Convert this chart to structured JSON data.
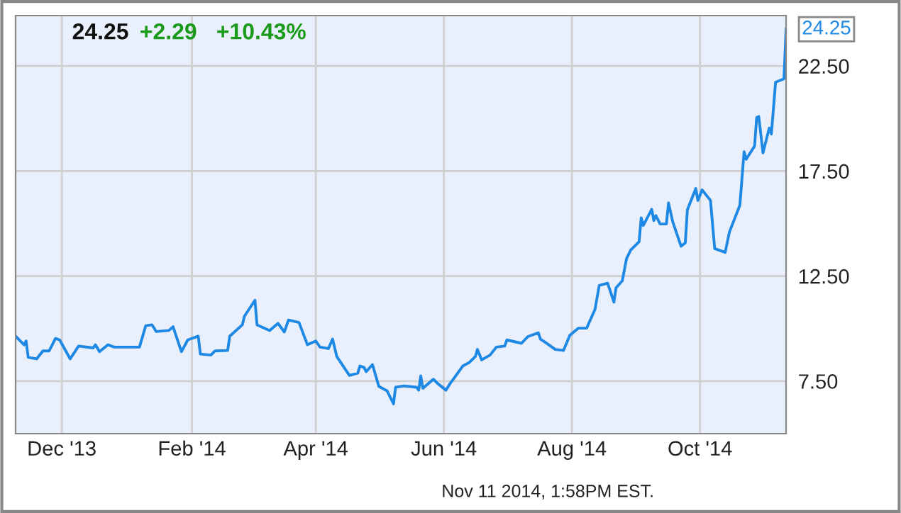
{
  "chart_data": {
    "type": "line",
    "annotations": [
      "24.25",
      "+2.29",
      "+10.43%",
      {
        "text": "24.25",
        "x": "2014-11-11",
        "y": 24.25
      },
      "Nov 11 2014, 1:58PM EST."
    ],
    "series": [
      {
        "color": "#1e88e5",
        "x": [
          "2013-11-09",
          "2013-11-13",
          "2013-11-14",
          "2013-11-15",
          "2013-11-19",
          "2013-11-22",
          "2013-11-25",
          "2013-11-28",
          "2013-11-30",
          "2013-12-05",
          "2013-12-09",
          "2013-12-16",
          "2013-12-17",
          "2013-12-19",
          "2013-12-23",
          "2013-12-26",
          "2014-01-07",
          "2014-01-10",
          "2014-01-13",
          "2014-01-15",
          "2014-01-21",
          "2014-01-23",
          "2014-01-27",
          "2014-01-30",
          "2014-02-04",
          "2014-02-05",
          "2014-02-10",
          "2014-02-12",
          "2014-02-18",
          "2014-02-19",
          "2014-02-25",
          "2014-02-26",
          "2014-03-03",
          "2014-03-04",
          "2014-03-10",
          "2014-03-14",
          "2014-03-17",
          "2014-03-19",
          "2014-03-24",
          "2014-03-28",
          "2014-04-01",
          "2014-04-03",
          "2014-04-07",
          "2014-04-09",
          "2014-04-11",
          "2014-04-17",
          "2014-04-21",
          "2014-04-22",
          "2014-04-24",
          "2014-04-25",
          "2014-04-28",
          "2014-05-01",
          "2014-05-05",
          "2014-05-08",
          "2014-05-09",
          "2014-05-13",
          "2014-05-19",
          "2014-05-20",
          "2014-05-21",
          "2014-05-22",
          "2014-05-27",
          "2014-05-29",
          "2014-06-02",
          "2014-06-04",
          "2014-06-06",
          "2014-06-10",
          "2014-06-13",
          "2014-06-16",
          "2014-06-17",
          "2014-06-19",
          "2014-06-23",
          "2014-06-26",
          "2014-06-30",
          "2014-07-01",
          "2014-07-08",
          "2014-07-11",
          "2014-07-16",
          "2014-07-17",
          "2014-07-21",
          "2014-07-24",
          "2014-07-28",
          "2014-07-31",
          "2014-08-04",
          "2014-08-08",
          "2014-08-12",
          "2014-08-14",
          "2014-08-18",
          "2014-08-21",
          "2014-08-22",
          "2014-08-25",
          "2014-08-27",
          "2014-08-29",
          "2014-09-02",
          "2014-09-03",
          "2014-09-04",
          "2014-09-08",
          "2014-09-09",
          "2014-09-10",
          "2014-09-12",
          "2014-09-15",
          "2014-09-16",
          "2014-09-18",
          "2014-09-22",
          "2014-09-24",
          "2014-09-25",
          "2014-09-29",
          "2014-09-30",
          "2014-10-02",
          "2014-10-06",
          "2014-10-08",
          "2014-10-13",
          "2014-10-15",
          "2014-10-20",
          "2014-10-22",
          "2014-10-23",
          "2014-10-27",
          "2014-10-28",
          "2014-10-29",
          "2014-10-31",
          "2014-11-03",
          "2014-11-04",
          "2014-11-06",
          "2014-11-10",
          "2014-11-11"
        ],
        "values": [
          9.64,
          9.23,
          9.41,
          8.63,
          8.56,
          8.94,
          8.94,
          9.53,
          9.46,
          8.56,
          9.17,
          9.08,
          9.23,
          8.9,
          9.23,
          9.12,
          9.12,
          10.14,
          10.18,
          9.86,
          9.91,
          10.09,
          8.9,
          9.46,
          9.64,
          8.79,
          8.74,
          8.94,
          8.96,
          9.64,
          10.18,
          10.59,
          11.35,
          10.18,
          9.91,
          10.25,
          9.84,
          10.41,
          10.29,
          9.23,
          9.41,
          9.12,
          9.05,
          9.5,
          8.67,
          7.77,
          7.88,
          8.22,
          8.15,
          7.95,
          8.29,
          7.25,
          7.03,
          6.42,
          7.21,
          7.27,
          7.21,
          7.07,
          7.75,
          7.16,
          7.59,
          7.39,
          7.07,
          7.39,
          7.66,
          8.22,
          8.38,
          8.67,
          9.01,
          8.51,
          8.74,
          9.12,
          9.17,
          9.46,
          9.3,
          9.62,
          9.8,
          9.5,
          9.23,
          9.01,
          8.96,
          9.68,
          10.02,
          10.02,
          10.92,
          12.05,
          12.16,
          11.26,
          11.94,
          12.28,
          13.33,
          13.74,
          14.14,
          15.27,
          14.91,
          15.68,
          15.14,
          15.38,
          14.98,
          14.98,
          15.99,
          15.09,
          13.92,
          14.08,
          15.66,
          16.67,
          16.1,
          16.6,
          16.1,
          13.81,
          13.63,
          14.59,
          15.88,
          18.42,
          18.06,
          18.69,
          20.05,
          20.09,
          18.36,
          19.55,
          19.26,
          21.73,
          21.89,
          24.25
        ]
      }
    ],
    "xlim": [
      "2013-11-09",
      "2014-11-11"
    ],
    "xticks": [
      {
        "value": "2013-12-01",
        "label": "Dec '13"
      },
      {
        "value": "2014-02-01",
        "label": "Feb '14"
      },
      {
        "value": "2014-04-01",
        "label": "Apr '14"
      },
      {
        "value": "2014-06-01",
        "label": "Jun '14"
      },
      {
        "value": "2014-08-01",
        "label": "Aug '14"
      },
      {
        "value": "2014-10-01",
        "label": "Oct '14"
      }
    ],
    "ylim": [
      5,
      24.9
    ],
    "yticks": [
      {
        "value": 7.5,
        "label": "7.50"
      },
      {
        "value": 12.5,
        "label": "12.50"
      },
      {
        "value": 17.5,
        "label": "17.50"
      },
      {
        "value": 22.5,
        "label": "22.50"
      }
    ],
    "grid": true,
    "legend": false
  }
}
